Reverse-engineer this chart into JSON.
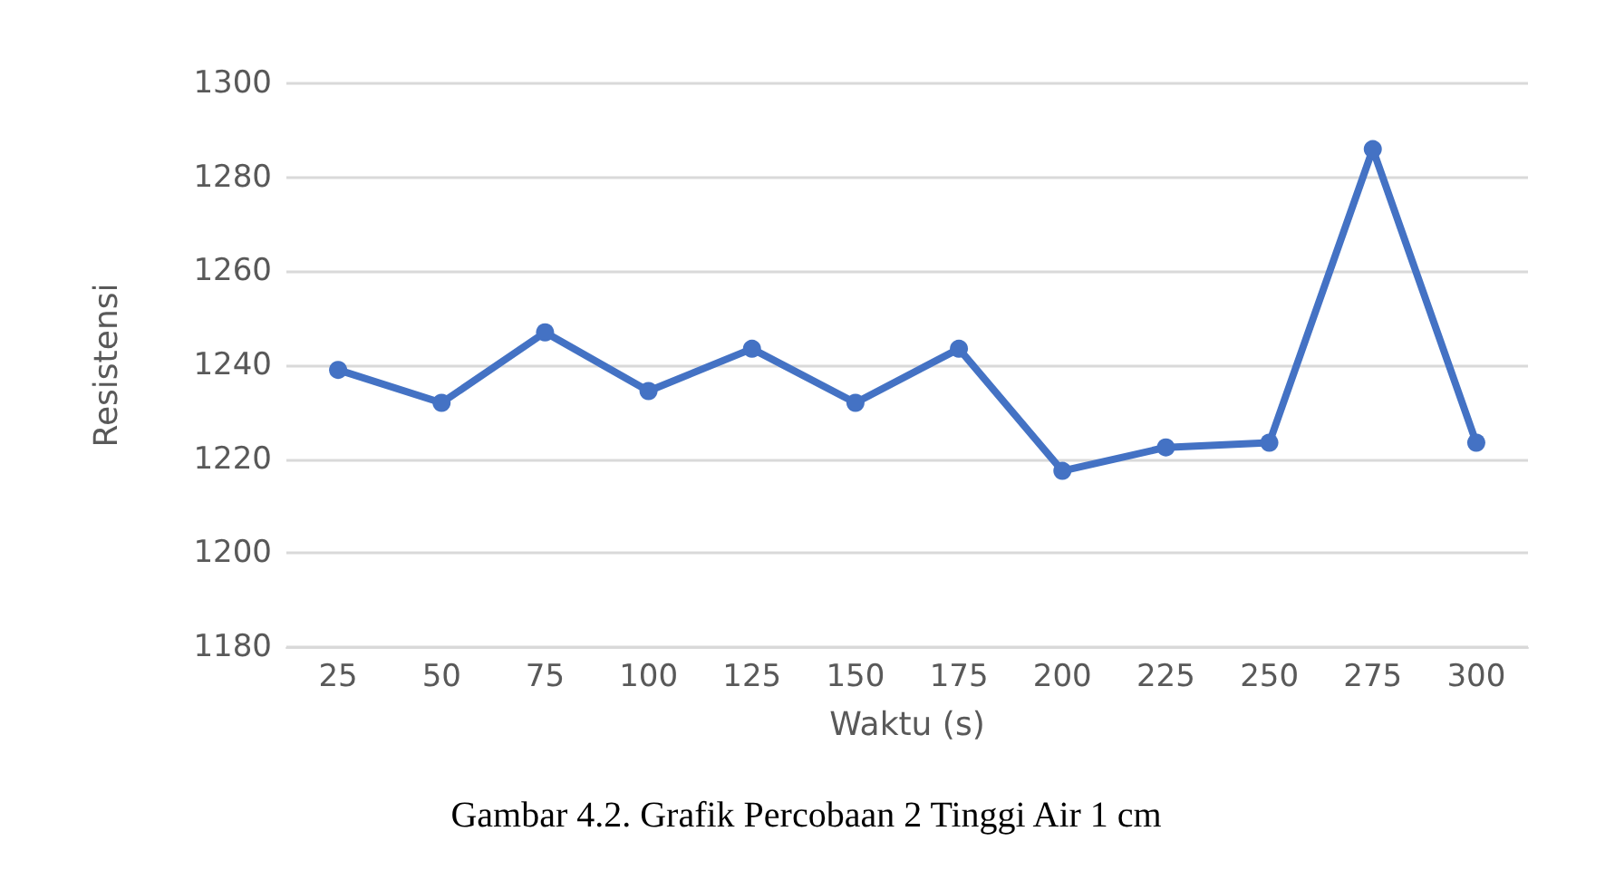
{
  "chart_data": {
    "type": "line",
    "xlabel": "Waktu (s)",
    "ylabel": "Resistensi",
    "categories": [
      "25",
      "50",
      "75",
      "100",
      "125",
      "150",
      "175",
      "200",
      "225",
      "250",
      "275",
      "300"
    ],
    "series": [
      {
        "color": "#4472c4",
        "values": [
          1239,
          1232,
          1247,
          1234.5,
          1243.5,
          1232,
          1243.5,
          1217.5,
          1222.5,
          1223.5,
          1286,
          1223.5
        ]
      }
    ],
    "ylim": [
      1180,
      1300
    ],
    "yticks": [
      1180,
      1200,
      1220,
      1240,
      1260,
      1280,
      1300
    ],
    "grid": "y",
    "marker": "circle",
    "line_style": "solid",
    "annotations": [
      "Gambar 4.2. Grafik Percobaan 2 Tinggi Air 1 cm"
    ]
  }
}
